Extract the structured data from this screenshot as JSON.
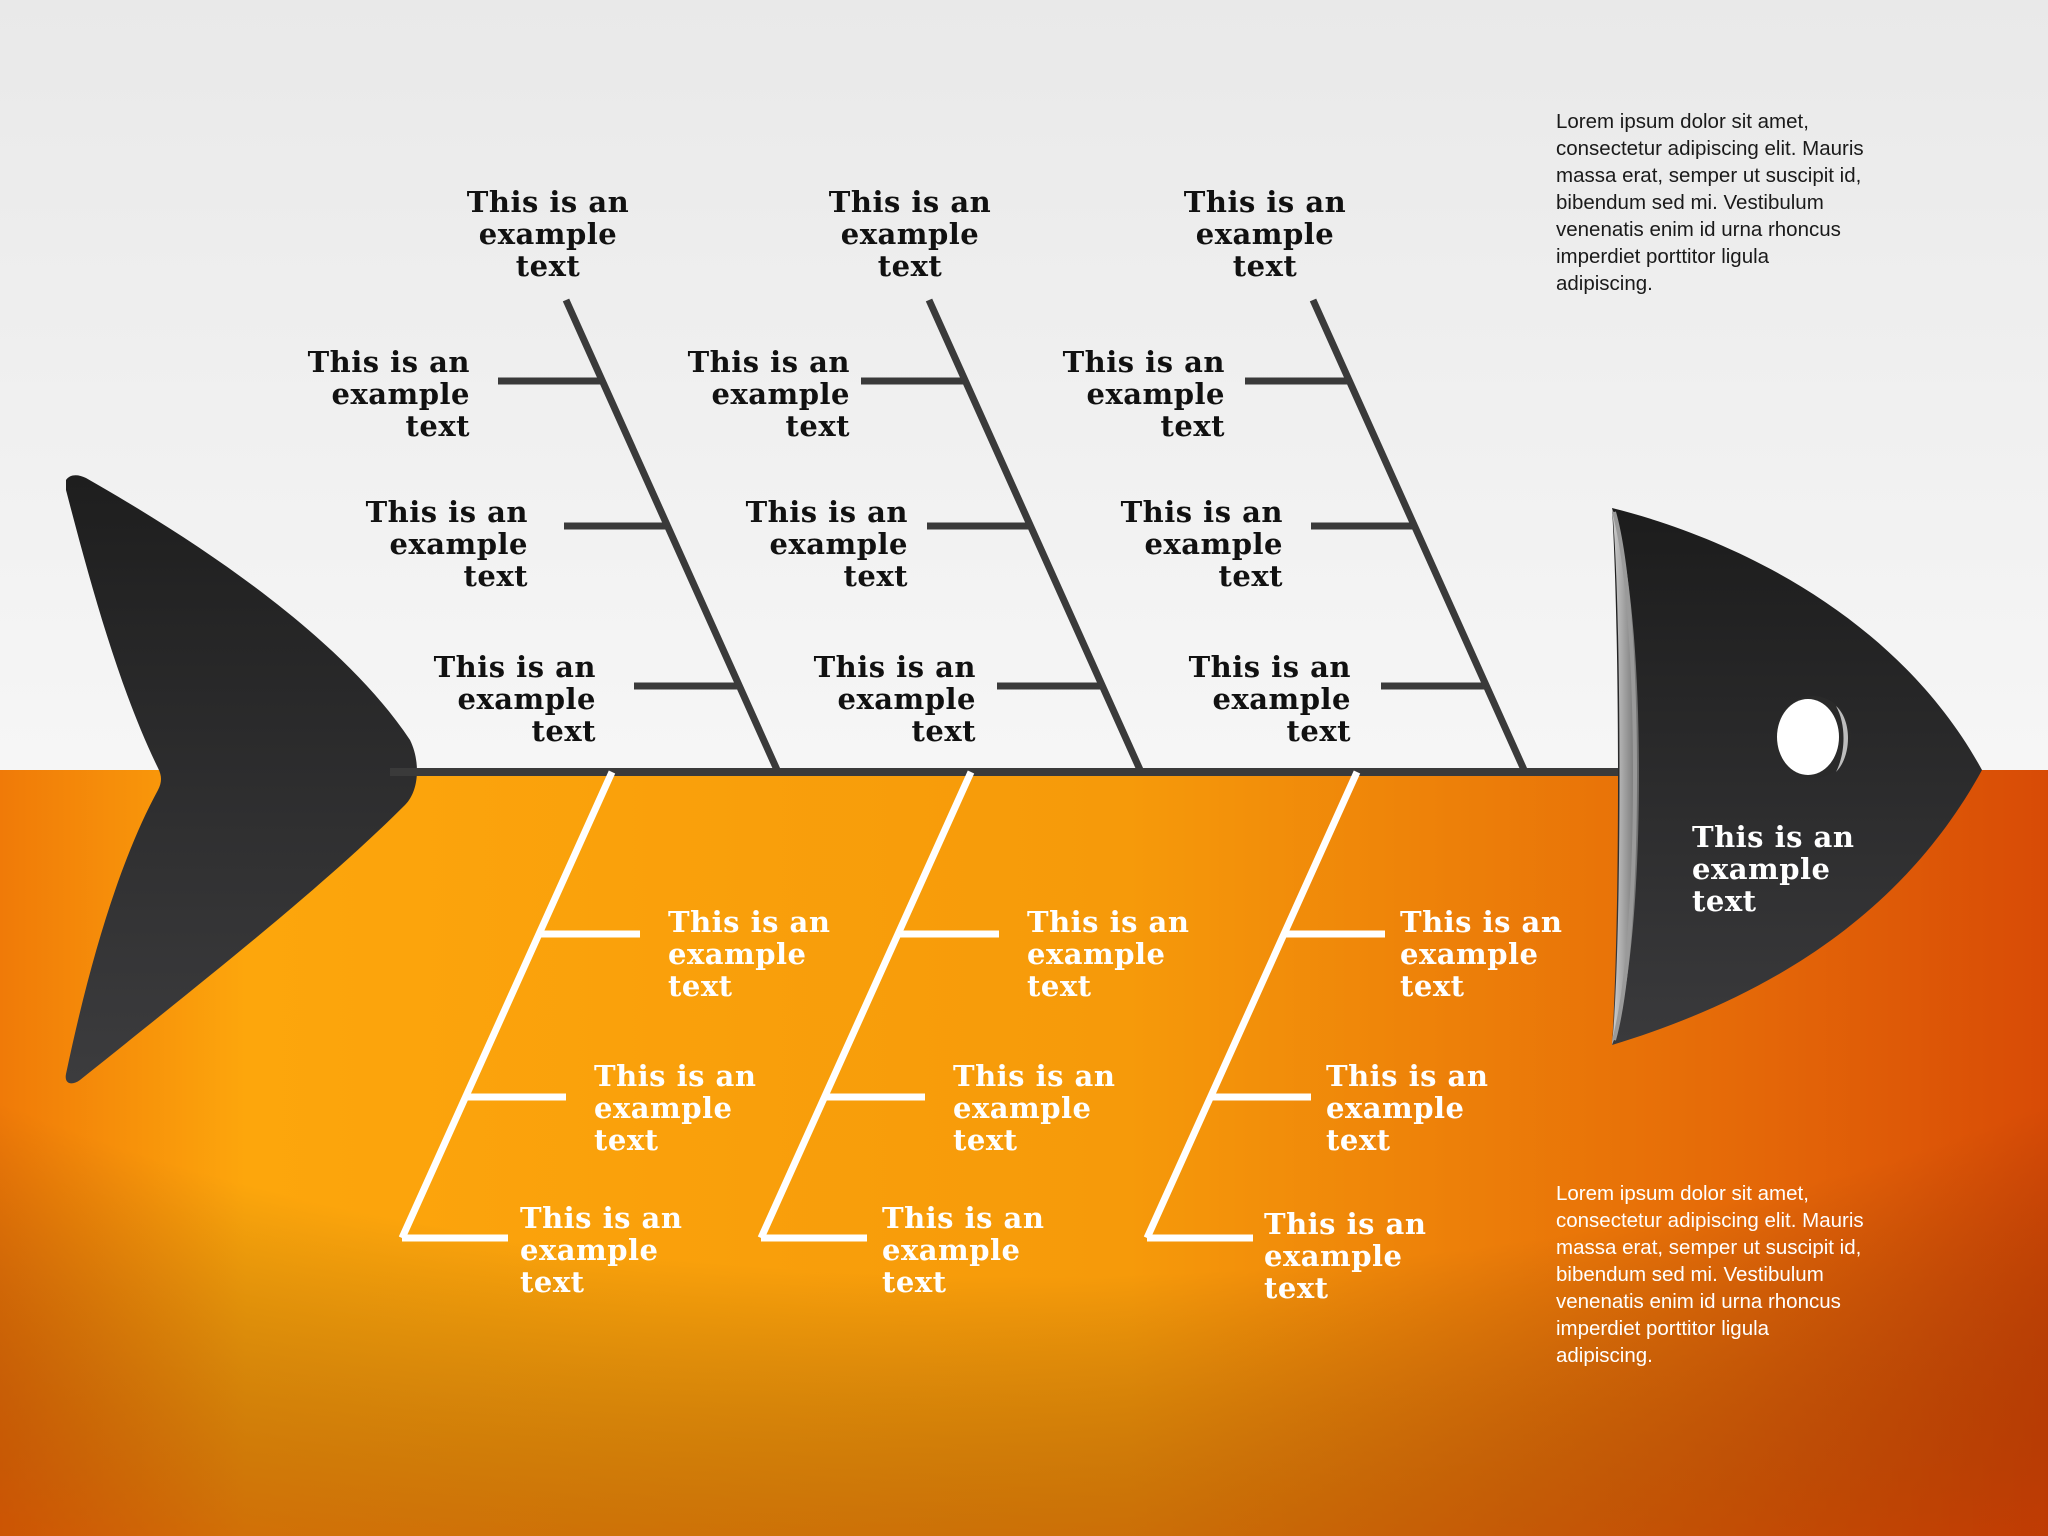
{
  "colors": {
    "background_top": "#efefef",
    "background_bottom": "#f59a0a",
    "background_bottom_edge": "#d6430a",
    "fish_body": "#2f2f31",
    "bone_dark": "#3a3a3a",
    "bone_light": "#ffffff",
    "eye": "#ffffff"
  },
  "head_label": {
    "line1": "This is an",
    "line2": "example",
    "line3": "text"
  },
  "upper_groups": [
    {
      "top": {
        "line1": "This is an",
        "line2": "example",
        "line3": "text"
      },
      "branches": [
        {
          "line1": "This is an",
          "line2": "example",
          "line3": "text"
        },
        {
          "line1": "This is an",
          "line2": "example",
          "line3": "text"
        },
        {
          "line1": "This is an",
          "line2": "example",
          "line3": "text"
        }
      ]
    },
    {
      "top": {
        "line1": "This is an",
        "line2": "example",
        "line3": "text"
      },
      "branches": [
        {
          "line1": "This is an",
          "line2": "example",
          "line3": "text"
        },
        {
          "line1": "This is an",
          "line2": "example",
          "line3": "text"
        },
        {
          "line1": "This is an",
          "line2": "example",
          "line3": "text"
        }
      ]
    },
    {
      "top": {
        "line1": "This is an",
        "line2": "example",
        "line3": "text"
      },
      "branches": [
        {
          "line1": "This is an",
          "line2": "example",
          "line3": "text"
        },
        {
          "line1": "This is an",
          "line2": "example",
          "line3": "text"
        },
        {
          "line1": "This is an",
          "line2": "example",
          "line3": "text"
        }
      ]
    }
  ],
  "lower_groups": [
    {
      "branches": [
        {
          "line1": "This is an",
          "line2": "example",
          "line3": "text"
        },
        {
          "line1": "This is an",
          "line2": "example",
          "line3": "text"
        },
        {
          "line1": "This is an",
          "line2": "example",
          "line3": "text"
        }
      ]
    },
    {
      "branches": [
        {
          "line1": "This is an",
          "line2": "example",
          "line3": "text"
        },
        {
          "line1": "This is an",
          "line2": "example",
          "line3": "text"
        },
        {
          "line1": "This is an",
          "line2": "example",
          "line3": "text"
        }
      ]
    },
    {
      "branches": [
        {
          "line1": "This is an",
          "line2": "example",
          "line3": "text"
        },
        {
          "line1": "This is an",
          "line2": "example",
          "line3": "text"
        },
        {
          "line1": "This is an",
          "line2": "example",
          "line3": "text"
        }
      ]
    }
  ],
  "paragraph_top": {
    "line1": "Lorem ipsum dolor sit amet,",
    "line2": "consectetur adipiscing elit. Mauris",
    "line3": "massa erat, semper ut suscipit id,",
    "line4": "bibendum sed mi. Vestibulum",
    "line5": "venenatis enim id urna rhoncus",
    "line6": "imperdiet porttitor ligula",
    "line7": "adipiscing."
  },
  "paragraph_bottom": {
    "line1": "Lorem ipsum dolor sit amet,",
    "line2": "consectetur adipiscing elit. Mauris",
    "line3": "massa erat, semper ut suscipit id,",
    "line4": "bibendum sed mi. Vestibulum",
    "line5": "venenatis enim id urna rhoncus",
    "line6": "imperdiet porttitor ligula",
    "line7": "adipiscing."
  }
}
